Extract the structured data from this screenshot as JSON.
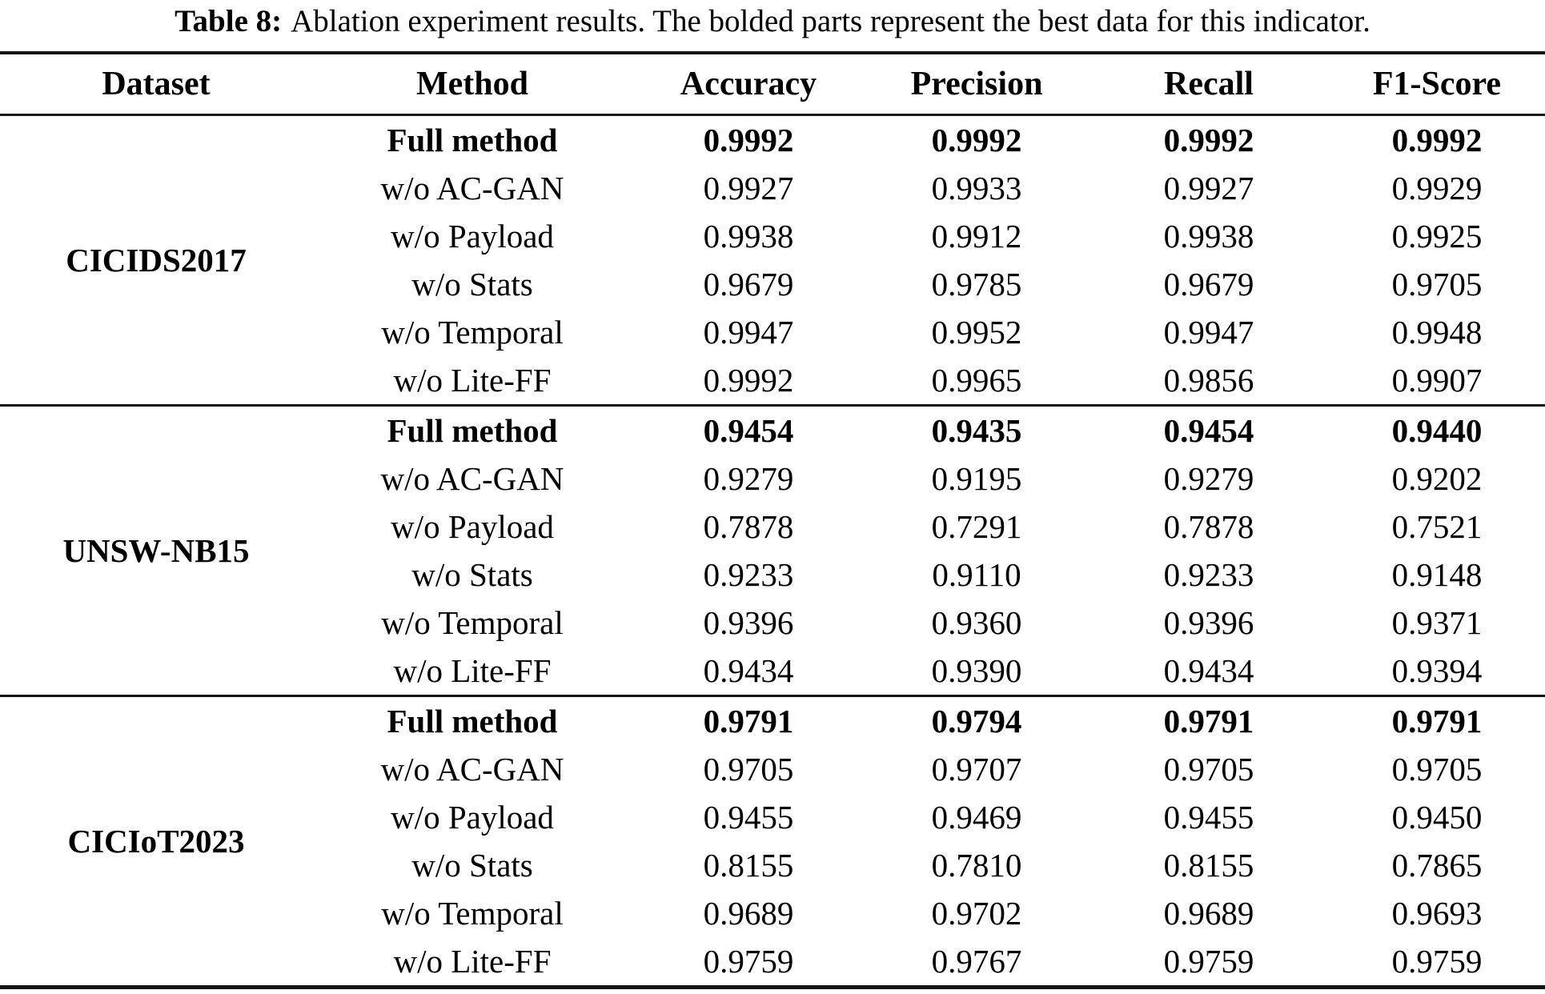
{
  "caption": {
    "prefix": "Table 8:",
    "text": "Ablation experiment results. The bolded parts represent the best data for this indicator."
  },
  "colors": {
    "background": "#ffffff",
    "text": "#000000",
    "rule": "#141414"
  },
  "table": {
    "columns": [
      "Dataset",
      "Method",
      "Accuracy",
      "Precision",
      "Recall",
      "F1-Score"
    ],
    "groups": [
      {
        "dataset": "CICIDS2017",
        "rows": [
          {
            "method": "Full method",
            "bold": true,
            "values": [
              "0.9992",
              "0.9992",
              "0.9992",
              "0.9992"
            ]
          },
          {
            "method": "w/o AC-GAN",
            "bold": false,
            "values": [
              "0.9927",
              "0.9933",
              "0.9927",
              "0.9929"
            ]
          },
          {
            "method": "w/o Payload",
            "bold": false,
            "values": [
              "0.9938",
              "0.9912",
              "0.9938",
              "0.9925"
            ]
          },
          {
            "method": "w/o Stats",
            "bold": false,
            "values": [
              "0.9679",
              "0.9785",
              "0.9679",
              "0.9705"
            ]
          },
          {
            "method": "w/o Temporal",
            "bold": false,
            "values": [
              "0.9947",
              "0.9952",
              "0.9947",
              "0.9948"
            ]
          },
          {
            "method": "w/o Lite-FF",
            "bold": false,
            "values": [
              "0.9992",
              "0.9965",
              "0.9856",
              "0.9907"
            ]
          }
        ]
      },
      {
        "dataset": "UNSW-NB15",
        "rows": [
          {
            "method": "Full method",
            "bold": true,
            "values": [
              "0.9454",
              "0.9435",
              "0.9454",
              "0.9440"
            ]
          },
          {
            "method": "w/o AC-GAN",
            "bold": false,
            "values": [
              "0.9279",
              "0.9195",
              "0.9279",
              "0.9202"
            ]
          },
          {
            "method": "w/o Payload",
            "bold": false,
            "values": [
              "0.7878",
              "0.7291",
              "0.7878",
              "0.7521"
            ]
          },
          {
            "method": "w/o Stats",
            "bold": false,
            "values": [
              "0.9233",
              "0.9110",
              "0.9233",
              "0.9148"
            ]
          },
          {
            "method": "w/o Temporal",
            "bold": false,
            "values": [
              "0.9396",
              "0.9360",
              "0.9396",
              "0.9371"
            ]
          },
          {
            "method": "w/o Lite-FF",
            "bold": false,
            "values": [
              "0.9434",
              "0.9390",
              "0.9434",
              "0.9394"
            ]
          }
        ]
      },
      {
        "dataset": "CICIoT2023",
        "rows": [
          {
            "method": "Full method",
            "bold": true,
            "values": [
              "0.9791",
              "0.9794",
              "0.9791",
              "0.9791"
            ]
          },
          {
            "method": "w/o AC-GAN",
            "bold": false,
            "values": [
              "0.9705",
              "0.9707",
              "0.9705",
              "0.9705"
            ]
          },
          {
            "method": "w/o Payload",
            "bold": false,
            "values": [
              "0.9455",
              "0.9469",
              "0.9455",
              "0.9450"
            ]
          },
          {
            "method": "w/o Stats",
            "bold": false,
            "values": [
              "0.8155",
              "0.7810",
              "0.8155",
              "0.7865"
            ]
          },
          {
            "method": "w/o Temporal",
            "bold": false,
            "values": [
              "0.9689",
              "0.9702",
              "0.9689",
              "0.9693"
            ]
          },
          {
            "method": "w/o Lite-FF",
            "bold": false,
            "values": [
              "0.9759",
              "0.9767",
              "0.9759",
              "0.9759"
            ]
          }
        ]
      }
    ]
  }
}
